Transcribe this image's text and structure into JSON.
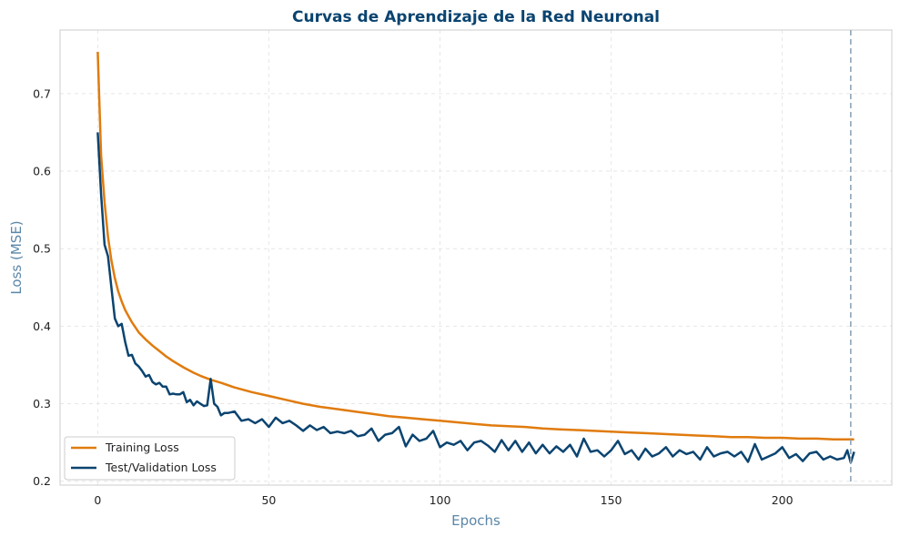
{
  "chart_data": {
    "type": "line",
    "title": "Curvas de Aprendizaje de la Red Neuronal",
    "xlabel": "Epochs",
    "ylabel": "Loss (MSE)",
    "xlim": [
      -11,
      232
    ],
    "ylim": [
      0.195,
      0.782
    ],
    "xticks": [
      0,
      50,
      100,
      150,
      200
    ],
    "yticks": [
      0.2,
      0.3,
      0.4,
      0.5,
      0.6,
      0.7
    ],
    "xtick_labels": [
      "0",
      "50",
      "100",
      "150",
      "200"
    ],
    "ytick_labels": [
      "0.2",
      "0.3",
      "0.4",
      "0.5",
      "0.6",
      "0.7"
    ],
    "grid": true,
    "legend_position": "lower-left",
    "vline": {
      "x": 220,
      "style": "dashed",
      "color": "#8ea4b8"
    },
    "series": [
      {
        "name": "Training Loss",
        "color": "#e07b0e",
        "x": [
          0,
          1,
          2,
          3,
          4,
          5,
          6,
          7,
          8,
          9,
          10,
          12,
          14,
          16,
          18,
          20,
          22,
          25,
          28,
          30,
          33,
          36,
          40,
          45,
          50,
          55,
          60,
          65,
          70,
          75,
          80,
          85,
          90,
          95,
          100,
          105,
          110,
          115,
          120,
          125,
          130,
          135,
          140,
          145,
          150,
          155,
          160,
          165,
          170,
          175,
          180,
          185,
          190,
          195,
          200,
          205,
          210,
          215,
          220,
          221
        ],
        "values": [
          0.754,
          0.62,
          0.56,
          0.515,
          0.485,
          0.462,
          0.445,
          0.432,
          0.421,
          0.413,
          0.405,
          0.392,
          0.383,
          0.375,
          0.368,
          0.361,
          0.355,
          0.347,
          0.34,
          0.336,
          0.331,
          0.327,
          0.321,
          0.315,
          0.31,
          0.305,
          0.3,
          0.296,
          0.293,
          0.29,
          0.287,
          0.284,
          0.282,
          0.28,
          0.278,
          0.276,
          0.274,
          0.272,
          0.271,
          0.27,
          0.268,
          0.267,
          0.266,
          0.265,
          0.264,
          0.263,
          0.262,
          0.261,
          0.26,
          0.259,
          0.258,
          0.257,
          0.257,
          0.256,
          0.256,
          0.255,
          0.255,
          0.254,
          0.254,
          0.254
        ]
      },
      {
        "name": "Test/Validation Loss",
        "color": "#0b4470",
        "x": [
          0,
          1,
          2,
          3,
          4,
          5,
          6,
          7,
          8,
          9,
          10,
          11,
          12,
          13,
          14,
          15,
          16,
          17,
          18,
          19,
          20,
          21,
          22,
          23,
          24,
          25,
          26,
          27,
          28,
          29,
          30,
          31,
          32,
          33,
          34,
          35,
          36,
          37,
          38,
          40,
          42,
          44,
          46,
          48,
          50,
          52,
          54,
          56,
          58,
          60,
          62,
          64,
          66,
          68,
          70,
          72,
          74,
          76,
          78,
          80,
          82,
          84,
          86,
          88,
          90,
          92,
          94,
          96,
          98,
          100,
          102,
          104,
          106,
          108,
          110,
          112,
          114,
          116,
          118,
          120,
          122,
          124,
          126,
          128,
          130,
          132,
          134,
          136,
          138,
          140,
          142,
          144,
          146,
          148,
          150,
          152,
          154,
          156,
          158,
          160,
          162,
          164,
          166,
          168,
          170,
          172,
          174,
          176,
          178,
          180,
          182,
          184,
          186,
          188,
          190,
          192,
          194,
          196,
          198,
          200,
          202,
          204,
          206,
          208,
          210,
          212,
          214,
          216,
          218,
          219,
          220,
          221
        ],
        "values": [
          0.65,
          0.57,
          0.505,
          0.49,
          0.45,
          0.41,
          0.4,
          0.403,
          0.38,
          0.362,
          0.363,
          0.352,
          0.348,
          0.342,
          0.335,
          0.337,
          0.328,
          0.325,
          0.327,
          0.322,
          0.322,
          0.312,
          0.313,
          0.312,
          0.312,
          0.315,
          0.302,
          0.305,
          0.298,
          0.303,
          0.3,
          0.297,
          0.298,
          0.332,
          0.3,
          0.296,
          0.285,
          0.288,
          0.288,
          0.29,
          0.278,
          0.28,
          0.275,
          0.28,
          0.27,
          0.282,
          0.275,
          0.278,
          0.272,
          0.265,
          0.272,
          0.266,
          0.27,
          0.262,
          0.264,
          0.262,
          0.265,
          0.258,
          0.26,
          0.268,
          0.252,
          0.26,
          0.262,
          0.27,
          0.245,
          0.26,
          0.252,
          0.255,
          0.265,
          0.244,
          0.25,
          0.247,
          0.252,
          0.24,
          0.25,
          0.252,
          0.246,
          0.238,
          0.253,
          0.24,
          0.252,
          0.238,
          0.25,
          0.236,
          0.247,
          0.236,
          0.245,
          0.238,
          0.247,
          0.232,
          0.255,
          0.238,
          0.24,
          0.232,
          0.24,
          0.252,
          0.235,
          0.24,
          0.228,
          0.242,
          0.232,
          0.236,
          0.244,
          0.232,
          0.24,
          0.235,
          0.238,
          0.228,
          0.244,
          0.232,
          0.236,
          0.238,
          0.232,
          0.238,
          0.225,
          0.248,
          0.228,
          0.232,
          0.236,
          0.244,
          0.23,
          0.235,
          0.226,
          0.236,
          0.238,
          0.228,
          0.232,
          0.228,
          0.23,
          0.24,
          0.224,
          0.238
        ]
      }
    ]
  }
}
